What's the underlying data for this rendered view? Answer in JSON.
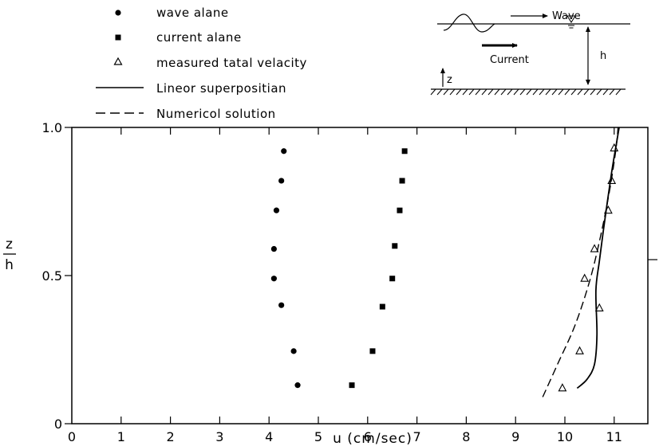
{
  "chart_data": {
    "type": "scatter",
    "title": "",
    "xlabel": "u (cm/sec)",
    "ylabel": {
      "numerator": "z",
      "denominator": "h"
    },
    "xlim": [
      0,
      11.4
    ],
    "ylim": [
      0,
      1.0
    ],
    "x_ticks": [
      "0",
      "1",
      "2",
      "3",
      "4",
      "5",
      "6",
      "7",
      "8",
      "9",
      "10",
      "11"
    ],
    "y_ticks": [
      "0",
      "0.5",
      "1.0"
    ],
    "grid": false,
    "legend_position": "top-left",
    "legend": [
      {
        "label": "wave alane",
        "marker": "circle"
      },
      {
        "label": "current alane",
        "marker": "square"
      },
      {
        "label": "measured tatal velacity",
        "marker": "triangle-open"
      },
      {
        "label": "Lineor superpositian",
        "marker": "solid-line"
      },
      {
        "label": "Numericol solution",
        "marker": "dashed-line"
      }
    ],
    "series": [
      {
        "name": "wave alane",
        "style": "circle",
        "points": [
          [
            4.3,
            0.92
          ],
          [
            4.25,
            0.82
          ],
          [
            4.15,
            0.72
          ],
          [
            4.1,
            0.59
          ],
          [
            4.1,
            0.49
          ],
          [
            4.25,
            0.4
          ],
          [
            4.5,
            0.245
          ],
          [
            4.58,
            0.13
          ]
        ]
      },
      {
        "name": "current alane",
        "style": "square",
        "points": [
          [
            6.75,
            0.92
          ],
          [
            6.7,
            0.82
          ],
          [
            6.65,
            0.72
          ],
          [
            6.55,
            0.6
          ],
          [
            6.5,
            0.49
          ],
          [
            6.3,
            0.395
          ],
          [
            6.1,
            0.245
          ],
          [
            5.68,
            0.13
          ]
        ]
      },
      {
        "name": "measured tatal velacity",
        "style": "triangle-open",
        "points": [
          [
            11.0,
            0.93
          ],
          [
            10.95,
            0.82
          ],
          [
            10.88,
            0.72
          ],
          [
            10.6,
            0.59
          ],
          [
            10.4,
            0.49
          ],
          [
            10.7,
            0.39
          ],
          [
            10.3,
            0.245
          ],
          [
            9.95,
            0.12
          ]
        ]
      },
      {
        "name": "Lineor superpositian",
        "style": "solid-line",
        "points": [
          [
            10.25,
            0.12
          ],
          [
            10.45,
            0.15
          ],
          [
            10.6,
            0.2
          ],
          [
            10.65,
            0.3
          ],
          [
            10.63,
            0.45
          ],
          [
            10.7,
            0.55
          ],
          [
            10.82,
            0.7
          ],
          [
            10.95,
            0.85
          ],
          [
            11.05,
            0.95
          ],
          [
            11.1,
            1.0
          ]
        ]
      },
      {
        "name": "Numericol solution",
        "style": "dashed-line",
        "points": [
          [
            9.55,
            0.09
          ],
          [
            9.85,
            0.2
          ],
          [
            10.2,
            0.33
          ],
          [
            10.5,
            0.48
          ],
          [
            10.72,
            0.63
          ],
          [
            10.9,
            0.78
          ],
          [
            11.03,
            0.92
          ],
          [
            11.08,
            1.0
          ]
        ]
      }
    ]
  },
  "inset": {
    "wave_label": "Wave",
    "current_label": "Current",
    "depth_label": "h",
    "z_label": "z"
  }
}
